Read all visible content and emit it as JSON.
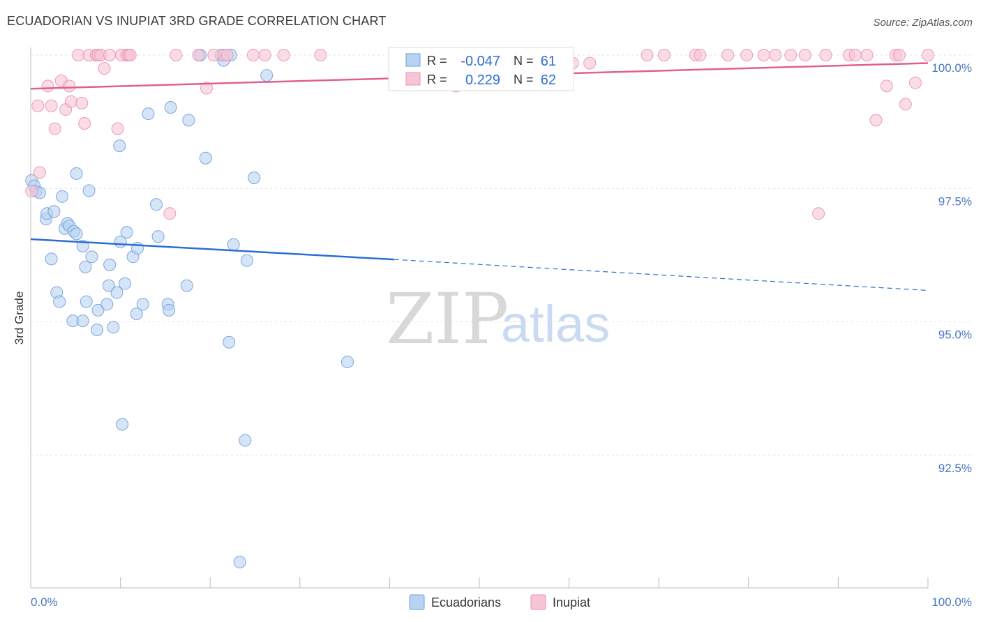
{
  "title": "ECUADORIAN VS INUPIAT 3RD GRADE CORRELATION CHART",
  "source": "Source: ZipAtlas.com",
  "watermark": {
    "zip": "ZIP",
    "atlas": "atlas"
  },
  "colors": {
    "ecuadorian": "#6fa0dd",
    "ecuadorian_fill": "#b9d2f1",
    "inupiat": "#ee8fb0",
    "inupiat_fill": "#f7c5d5",
    "trend_blue": "#2a6fcf",
    "trend_pink": "#e0608d"
  },
  "legend": {
    "r_label": "R =",
    "n_label": "N =",
    "rows": [
      {
        "r": "-0.047",
        "n": "61"
      },
      {
        "r": "0.229",
        "n": "62"
      }
    ]
  },
  "bottom_legend": [
    "Ecuadorians",
    "Inupiat"
  ],
  "chart_data": {
    "type": "scatter",
    "title": "ECUADORIAN VS INUPIAT 3RD GRADE CORRELATION CHART",
    "xlabel": "",
    "ylabel": "3rd Grade",
    "xlim": [
      0,
      100
    ],
    "ylim": [
      90.2,
      100.18
    ],
    "x_tick_labels": [
      "0.0%",
      "100.0%"
    ],
    "y_ticks": [
      {
        "value": 92.5,
        "label": "92.5%"
      },
      {
        "value": 95.0,
        "label": "95.0%"
      },
      {
        "value": 97.5,
        "label": "97.5%"
      },
      {
        "value": 100.0,
        "label": "100.0%"
      }
    ],
    "series": [
      {
        "name": "Ecuadorians",
        "points": [
          [
            0.1,
            97.65
          ],
          [
            0.4,
            97.55
          ],
          [
            0.6,
            97.45
          ],
          [
            1.0,
            97.42
          ],
          [
            1.7,
            96.93
          ],
          [
            1.8,
            97.03
          ],
          [
            2.6,
            97.07
          ],
          [
            3.5,
            97.35
          ],
          [
            3.8,
            96.75
          ],
          [
            4.1,
            96.85
          ],
          [
            4.3,
            96.8
          ],
          [
            4.8,
            96.7
          ],
          [
            5.1,
            96.65
          ],
          [
            5.8,
            96.42
          ],
          [
            6.1,
            96.03
          ],
          [
            6.5,
            97.46
          ],
          [
            6.8,
            96.22
          ],
          [
            2.3,
            96.18
          ],
          [
            2.9,
            95.55
          ],
          [
            3.2,
            95.38
          ],
          [
            4.7,
            95.02
          ],
          [
            5.8,
            95.02
          ],
          [
            6.2,
            95.38
          ],
          [
            7.4,
            94.85
          ],
          [
            7.5,
            95.22
          ],
          [
            8.5,
            95.33
          ],
          [
            8.7,
            95.68
          ],
          [
            8.8,
            96.07
          ],
          [
            9.2,
            94.9
          ],
          [
            9.6,
            95.55
          ],
          [
            10.0,
            96.5
          ],
          [
            10.7,
            96.68
          ],
          [
            10.5,
            95.72
          ],
          [
            11.4,
            96.22
          ],
          [
            11.8,
            95.15
          ],
          [
            11.9,
            96.38
          ],
          [
            12.5,
            95.33
          ],
          [
            14.0,
            97.2
          ],
          [
            14.2,
            96.6
          ],
          [
            15.3,
            95.33
          ],
          [
            15.4,
            95.22
          ],
          [
            17.4,
            95.68
          ],
          [
            9.9,
            98.3
          ],
          [
            13.1,
            98.9
          ],
          [
            15.6,
            99.02
          ],
          [
            17.6,
            98.78
          ],
          [
            18.9,
            100.0
          ],
          [
            21.2,
            100.0
          ],
          [
            22.3,
            100.0
          ],
          [
            19.5,
            98.07
          ],
          [
            22.1,
            94.62
          ],
          [
            22.6,
            96.45
          ],
          [
            24.1,
            96.15
          ],
          [
            24.9,
            97.7
          ],
          [
            26.3,
            99.62
          ],
          [
            10.2,
            93.08
          ],
          [
            23.9,
            92.78
          ],
          [
            23.3,
            90.5
          ],
          [
            35.3,
            94.25
          ],
          [
            21.5,
            99.9
          ],
          [
            5.1,
            97.78
          ]
        ]
      },
      {
        "name": "Inupiat",
        "points": [
          [
            0.1,
            97.45
          ],
          [
            1.0,
            97.8
          ],
          [
            0.8,
            99.05
          ],
          [
            1.9,
            99.42
          ],
          [
            2.3,
            99.05
          ],
          [
            2.7,
            98.62
          ],
          [
            3.4,
            99.52
          ],
          [
            3.9,
            98.98
          ],
          [
            4.3,
            99.42
          ],
          [
            4.5,
            99.13
          ],
          [
            5.3,
            100.0
          ],
          [
            5.7,
            99.1
          ],
          [
            6.0,
            98.72
          ],
          [
            6.5,
            100.0
          ],
          [
            7.3,
            100.0
          ],
          [
            7.5,
            100.0
          ],
          [
            7.8,
            100.0
          ],
          [
            8.2,
            99.75
          ],
          [
            8.8,
            100.0
          ],
          [
            9.7,
            98.62
          ],
          [
            10.1,
            100.0
          ],
          [
            10.7,
            100.0
          ],
          [
            10.9,
            100.0
          ],
          [
            11.1,
            100.0
          ],
          [
            15.5,
            97.03
          ],
          [
            16.2,
            100.0
          ],
          [
            18.7,
            100.0
          ],
          [
            19.6,
            99.38
          ],
          [
            20.4,
            100.0
          ],
          [
            21.5,
            100.0
          ],
          [
            21.9,
            100.0
          ],
          [
            24.8,
            100.0
          ],
          [
            26.1,
            100.0
          ],
          [
            28.2,
            100.0
          ],
          [
            32.3,
            100.0
          ],
          [
            47.4,
            99.42
          ],
          [
            48.6,
            100.0
          ],
          [
            58.3,
            100.0
          ],
          [
            60.4,
            99.85
          ],
          [
            62.3,
            99.85
          ],
          [
            68.7,
            100.0
          ],
          [
            70.6,
            100.0
          ],
          [
            74.1,
            100.0
          ],
          [
            74.6,
            100.0
          ],
          [
            77.7,
            100.0
          ],
          [
            79.8,
            100.0
          ],
          [
            81.7,
            100.0
          ],
          [
            83.0,
            100.0
          ],
          [
            84.7,
            100.0
          ],
          [
            86.3,
            100.0
          ],
          [
            87.8,
            97.03
          ],
          [
            88.6,
            100.0
          ],
          [
            91.2,
            100.0
          ],
          [
            91.9,
            100.0
          ],
          [
            93.2,
            100.0
          ],
          [
            94.2,
            98.78
          ],
          [
            95.4,
            99.42
          ],
          [
            96.4,
            100.0
          ],
          [
            96.8,
            100.0
          ],
          [
            97.5,
            99.08
          ],
          [
            98.6,
            99.48
          ],
          [
            100.0,
            100.0
          ]
        ]
      }
    ],
    "trend_lines": [
      {
        "series": "Ecuadorians",
        "solid": [
          [
            0,
            96.55
          ],
          [
            40.5,
            96.17
          ]
        ],
        "dashed": [
          [
            40.5,
            96.17
          ],
          [
            100,
            95.59
          ]
        ]
      },
      {
        "series": "Inupiat",
        "solid": [
          [
            0,
            99.37
          ],
          [
            100,
            99.85
          ]
        ]
      }
    ]
  }
}
